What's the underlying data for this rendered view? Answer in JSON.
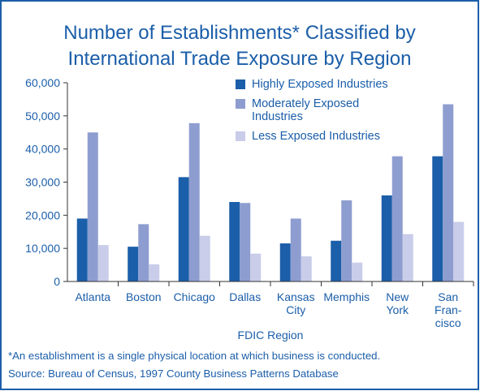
{
  "chart_data": {
    "type": "bar",
    "title": [
      "Number of Establishments* Classified by",
      "International Trade Exposure by Region"
    ],
    "categories": [
      [
        "Atlanta"
      ],
      [
        "Boston"
      ],
      [
        "Chicago"
      ],
      [
        "Dallas"
      ],
      [
        "Kansas",
        "City"
      ],
      [
        "Memphis"
      ],
      [
        "New",
        "York"
      ],
      [
        "San",
        "Fran-",
        "cisco"
      ]
    ],
    "series": [
      {
        "name": "Highly Exposed Industries",
        "color": "#1b5ea9",
        "values": [
          19000,
          10500,
          31500,
          24000,
          11500,
          12300,
          26000,
          37800
        ]
      },
      {
        "name": "Moderately Exposed Industries",
        "color": "#8e9dd0",
        "values": [
          45000,
          17300,
          47800,
          23700,
          19000,
          24500,
          37800,
          53500
        ]
      },
      {
        "name": "Less Exposed Industries",
        "color": "#c9cde9",
        "values": [
          11000,
          5200,
          13800,
          8400,
          7600,
          5700,
          14300,
          18000
        ]
      }
    ],
    "x_label": "FDIC Region",
    "ylim": [
      0,
      60000
    ],
    "yticks": [
      0,
      {
        "value": 10000,
        "label": "10,000"
      },
      {
        "value": 20000,
        "label": "20,000"
      },
      {
        "value": 30000,
        "label": "30,000"
      },
      {
        "value": 40000,
        "label": "40,000"
      },
      {
        "value": 50000,
        "label": "50,000"
      },
      {
        "value": 60000,
        "label": "60,000"
      }
    ],
    "legend": "upper right",
    "notes": [
      "*An establishment is a single physical location at which business is conducted.",
      "Source: Bureau of Census, 1997 County Business Patterns Database"
    ]
  }
}
